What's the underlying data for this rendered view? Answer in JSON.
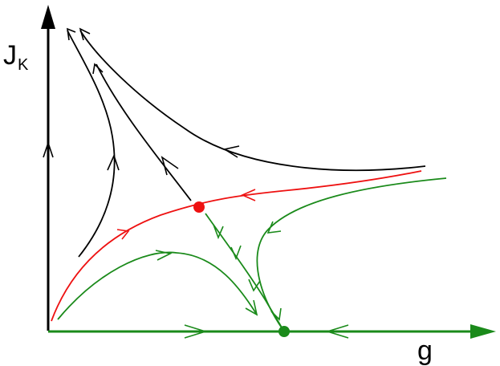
{
  "axes": {
    "x_label": "g",
    "y_label_main": "J",
    "y_label_sub": "K"
  },
  "colors": {
    "axis_y": "#000000",
    "axis_x": "#1a8a1a",
    "flow_black": "#000000",
    "flow_green": "#1a8a1a",
    "separatrix_red": "#ee1111",
    "fixed_point_unstable": "#ee1111",
    "fixed_point_stable": "#1a8a1a"
  },
  "fixed_points": [
    {
      "name": "intermediate-fixed-point",
      "color_key": "fixed_point_unstable"
    },
    {
      "name": "stable-fixed-point",
      "color_key": "fixed_point_stable"
    }
  ]
}
